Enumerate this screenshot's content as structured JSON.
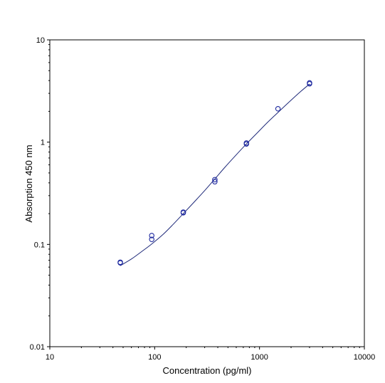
{
  "chart_data": {
    "type": "scatter",
    "title": "",
    "xlabel": "Concentration (pg/ml)",
    "ylabel": "Absorption 450 nm",
    "xscale": "log",
    "yscale": "log",
    "xlim": [
      10,
      10000
    ],
    "ylim": [
      0.01,
      10
    ],
    "x_ticks": [
      10,
      100,
      1000,
      10000
    ],
    "x_tick_labels": [
      "10",
      "100",
      "1000",
      "10000"
    ],
    "y_ticks": [
      0.01,
      0.1,
      1,
      10
    ],
    "y_tick_labels": [
      "0.01",
      "0.1",
      "1",
      "10"
    ],
    "grid": false,
    "legend": "none",
    "colors": {
      "points": "#1f2aa0",
      "curve": "#1f2a7a",
      "axes": "#000000"
    },
    "series": [
      {
        "type": "scatter",
        "points": [
          {
            "x": 47,
            "y": 0.066
          },
          {
            "x": 47,
            "y": 0.067
          },
          {
            "x": 93.75,
            "y": 0.112
          },
          {
            "x": 93.75,
            "y": 0.122
          },
          {
            "x": 187.5,
            "y": 0.204
          },
          {
            "x": 187.5,
            "y": 0.207
          },
          {
            "x": 375,
            "y": 0.41
          },
          {
            "x": 375,
            "y": 0.43
          },
          {
            "x": 750,
            "y": 0.96
          },
          {
            "x": 750,
            "y": 0.98
          },
          {
            "x": 1500,
            "y": 2.12
          },
          {
            "x": 3000,
            "y": 3.72
          },
          {
            "x": 3000,
            "y": 3.8
          }
        ]
      },
      {
        "type": "line",
        "curve": [
          {
            "x": 47,
            "y": 0.062
          },
          {
            "x": 60,
            "y": 0.072
          },
          {
            "x": 75,
            "y": 0.085
          },
          {
            "x": 93.75,
            "y": 0.101
          },
          {
            "x": 120,
            "y": 0.125
          },
          {
            "x": 150,
            "y": 0.157
          },
          {
            "x": 187.5,
            "y": 0.2
          },
          {
            "x": 240,
            "y": 0.262
          },
          {
            "x": 300,
            "y": 0.336
          },
          {
            "x": 375,
            "y": 0.437
          },
          {
            "x": 470,
            "y": 0.571
          },
          {
            "x": 600,
            "y": 0.752
          },
          {
            "x": 750,
            "y": 0.96
          },
          {
            "x": 950,
            "y": 1.23
          },
          {
            "x": 1200,
            "y": 1.57
          },
          {
            "x": 1500,
            "y": 1.95
          },
          {
            "x": 1900,
            "y": 2.45
          },
          {
            "x": 2400,
            "y": 3.05
          },
          {
            "x": 3000,
            "y": 3.7
          }
        ]
      }
    ]
  }
}
